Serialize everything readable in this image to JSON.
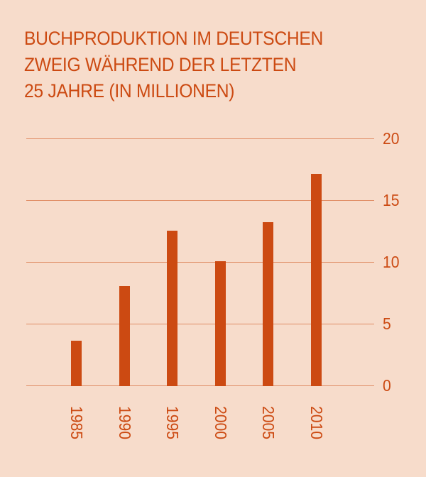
{
  "title": {
    "lines": [
      "BUCHPRODUKTION IM DEUTSCHEN",
      "ZWEIG WÄHREND DER LETZTEN",
      "25 JAHRE (IN MILLIONEN)"
    ]
  },
  "colors": {
    "background": "#f7dccb",
    "accent": "#cc4a12",
    "grid": "#e08d66"
  },
  "axis": {
    "y_ticks": [
      "20",
      "15",
      "10",
      "5",
      "0"
    ],
    "x_ticks": [
      "1985",
      "1990",
      "1995",
      "2000",
      "2005",
      "2010"
    ]
  },
  "chart_data": {
    "type": "bar",
    "title": "BUCHPRODUKTION IM DEUTSCHEN ZWEIG WÄHREND DER LETZTEN 25 JAHRE (IN MILLIONEN)",
    "categories": [
      "1985",
      "1990",
      "1995",
      "2000",
      "2005",
      "2010"
    ],
    "values": [
      3.7,
      8.1,
      12.6,
      10.1,
      13.3,
      17.2
    ],
    "xlabel": "",
    "ylabel": "",
    "ylim": [
      0,
      20
    ],
    "yticks": [
      0,
      5,
      10,
      15,
      20
    ],
    "y_axis_position": "right",
    "grid": true,
    "legend": null,
    "x_label_rotation": 90
  }
}
